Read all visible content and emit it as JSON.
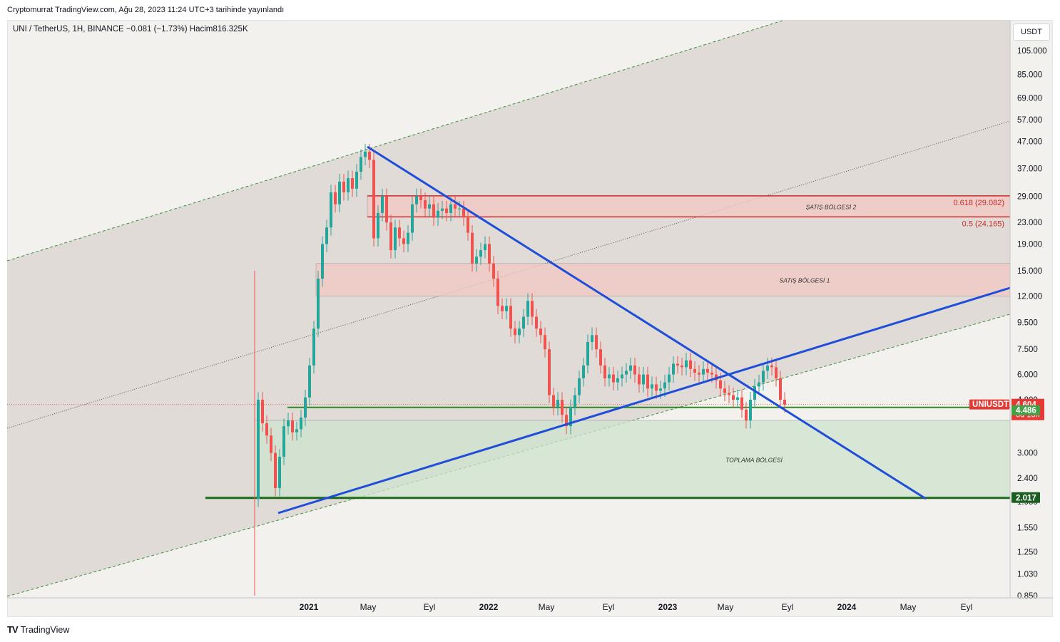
{
  "header": {
    "published": "Cryptomurrat TradingView.com, Ağu 28, 2023 11:24 UTC+3 tarihinde yayınlandı"
  },
  "symbol_info": "UNI / TetherUS, 1H, BINANCE  −0.081 (−1.73%)  Hacim816.325K",
  "currency_button": "USDT",
  "footer": {
    "logo": "TV",
    "brand": "TradingView"
  },
  "colors": {
    "up": "#26a69a",
    "down": "#ef5350",
    "trendline": "#1f4ed8",
    "support": "#2e8b24",
    "resistance": "#cc2929",
    "zone_red": "#f3c9c5",
    "zone_green": "#cfe3cf"
  },
  "chart_data": {
    "type": "candlestick",
    "scale": "log",
    "ylim": [
      0.85,
      105
    ],
    "y_ticks": [
      "105.000",
      "85.000",
      "69.000",
      "57.000",
      "47.000",
      "37.000",
      "29.000",
      "23.000",
      "19.000",
      "15.000",
      "12.000",
      "9.500",
      "7.500",
      "6.000",
      "4.800",
      "3.000",
      "2.400",
      "1.950",
      "1.550",
      "1.250",
      "1.030",
      "0.850"
    ],
    "x_ticks": [
      "2021",
      "May",
      "Eyl",
      "2022",
      "May",
      "Eyl",
      "2023",
      "May",
      "Eyl",
      "2024",
      "May",
      "Eyl"
    ],
    "bold_x_ticks": [
      "2021",
      "2022",
      "2023",
      "2024"
    ],
    "zones": [
      {
        "label": "ŞATIŞ BÖLGESİ 2",
        "low": 24.165,
        "high": 29.082
      },
      {
        "label": "SATIŞ BÖLGESİ 1",
        "low": 12.0,
        "high": 16.0
      },
      {
        "label": "TOPLAMA BÖLGESİ",
        "low": 2.017,
        "high": 4.0
      }
    ],
    "fib_levels": [
      {
        "label": "0.618 (29.082)",
        "price": 29.082
      },
      {
        "label": "0.5 (24.165)",
        "price": 24.165
      }
    ],
    "price_labels": [
      {
        "text": "UNIUSDT",
        "price": 4.604
      },
      {
        "text": "4.604",
        "price": 4.604
      },
      {
        "text": "6d 16h",
        "price": 4.604
      },
      {
        "text": "4.486",
        "price": 4.486
      },
      {
        "text": "2.017",
        "price": 2.017
      }
    ],
    "horizontal_levels": [
      4.486,
      2.017
    ],
    "current_price": 4.604
  }
}
